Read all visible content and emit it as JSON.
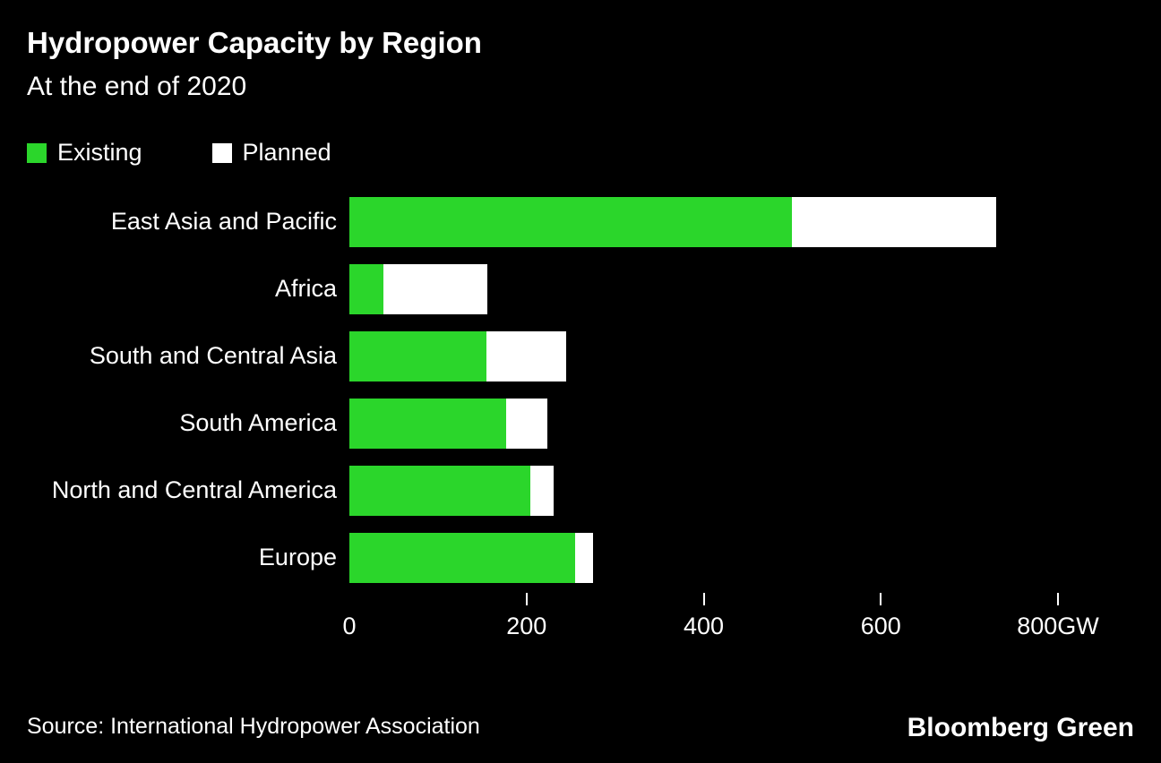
{
  "header": {
    "title": "Hydropower Capacity by Region",
    "subtitle": "At the end of 2020"
  },
  "legend": [
    {
      "label": "Existing",
      "color": "#2BD62B"
    },
    {
      "label": "Planned",
      "color": "#FFFFFF"
    }
  ],
  "chart_data": {
    "type": "bar",
    "orientation": "horizontal",
    "stacked": true,
    "title": "Hydropower Capacity by Region",
    "subtitle": "At the end of 2020",
    "categories": [
      "East Asia and Pacific",
      "Africa",
      "South and Central Asia",
      "South America",
      "North and Central America",
      "Europe"
    ],
    "series": [
      {
        "name": "Existing",
        "color": "#2BD62B",
        "values": [
          500,
          38,
          155,
          177,
          204,
          255
        ]
      },
      {
        "name": "Planned",
        "color": "#FFFFFF",
        "values": [
          230,
          118,
          90,
          47,
          27,
          20
        ]
      }
    ],
    "xlim": [
      0,
      800
    ],
    "xticks": [
      0,
      200,
      400,
      600,
      800
    ],
    "xtick_labels": [
      "0",
      "200",
      "400",
      "600",
      "800GW"
    ],
    "x_unit": "GW",
    "grid": false,
    "legend_position": "top-left"
  },
  "footer": {
    "source": "Source: International Hydropower Association",
    "brand": "Bloomberg Green"
  },
  "colors": {
    "background": "#000000",
    "text": "#FFFFFF",
    "existing": "#2BD62B",
    "planned": "#FFFFFF"
  }
}
